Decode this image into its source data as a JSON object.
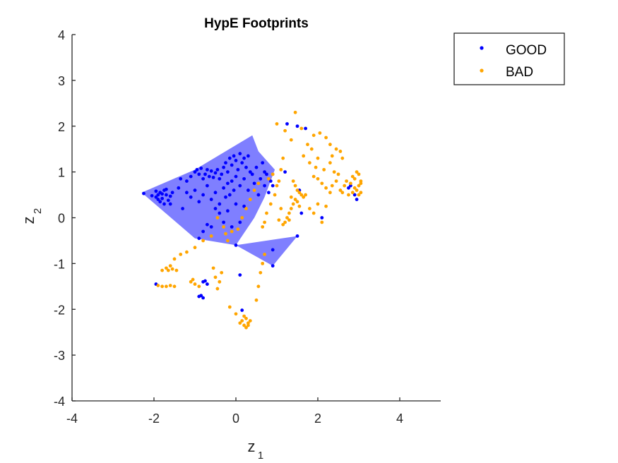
{
  "chart_data": {
    "type": "scatter",
    "title": "HypE Footprints",
    "xlabel": {
      "main": "z",
      "sub": "1"
    },
    "ylabel": {
      "main": "z",
      "sub": "2"
    },
    "xlim": [
      -4,
      5
    ],
    "ylim": [
      -4,
      4
    ],
    "xticks": [
      -4,
      -2,
      0,
      2,
      4
    ],
    "yticks": [
      -4,
      -3,
      -2,
      -1,
      0,
      1,
      2,
      3,
      4
    ],
    "xtick_labels": [
      "-4",
      "-2",
      "0",
      "2",
      "4"
    ],
    "ytick_labels": [
      "-4",
      "-3",
      "-2",
      "-1",
      "0",
      "1",
      "2",
      "3",
      "4"
    ],
    "legend": {
      "position": "top-right-outside",
      "entries": [
        {
          "name": "GOOD",
          "color": "#0000ff"
        },
        {
          "name": "BAD",
          "color": "#ffa500"
        }
      ]
    },
    "footprints": [
      {
        "series": "GOOD",
        "color": "#0000ff",
        "opacity": 0.5,
        "polygon": [
          [
            -2.3,
            0.55
          ],
          [
            -1.0,
            1.05
          ],
          [
            0.4,
            1.8
          ],
          [
            0.55,
            1.45
          ],
          [
            0.95,
            1.05
          ],
          [
            0.7,
            0.45
          ],
          [
            0.45,
            0.0
          ],
          [
            0.0,
            -0.6
          ],
          [
            -1.0,
            -0.45
          ],
          [
            -2.3,
            0.55
          ]
        ]
      },
      {
        "series": "GOOD",
        "color": "#0000ff",
        "opacity": 0.5,
        "polygon": [
          [
            0.0,
            -0.6
          ],
          [
            1.5,
            -0.4
          ],
          [
            0.9,
            -1.05
          ],
          [
            0.0,
            -0.6
          ]
        ]
      }
    ],
    "series": [
      {
        "name": "GOOD",
        "color": "#0000ff",
        "points": [
          [
            -2.25,
            0.53
          ],
          [
            -2.05,
            0.48
          ],
          [
            -1.95,
            0.45
          ],
          [
            -1.9,
            0.5
          ],
          [
            -1.85,
            0.55
          ],
          [
            -1.8,
            0.42
          ],
          [
            -1.75,
            0.6
          ],
          [
            -1.7,
            0.5
          ],
          [
            -1.65,
            0.38
          ],
          [
            -1.6,
            0.47
          ],
          [
            -1.55,
            0.55
          ],
          [
            -1.85,
            0.35
          ],
          [
            -1.75,
            0.3
          ],
          [
            -1.95,
            0.58
          ],
          [
            -1.7,
            0.62
          ],
          [
            -1.6,
            0.3
          ],
          [
            -1.9,
            0.4
          ],
          [
            -1.8,
            0.52
          ],
          [
            -1.2,
            0.8
          ],
          [
            -1.1,
            0.9
          ],
          [
            -1.0,
            1.0
          ],
          [
            -0.95,
            1.05
          ],
          [
            -0.9,
            0.95
          ],
          [
            -0.85,
            1.08
          ],
          [
            -0.8,
            0.85
          ],
          [
            -0.75,
            0.95
          ],
          [
            -0.7,
            1.05
          ],
          [
            -0.65,
            0.9
          ],
          [
            -0.6,
            1.02
          ],
          [
            -0.55,
            0.88
          ],
          [
            -0.5,
            0.98
          ],
          [
            -0.45,
            1.05
          ],
          [
            -0.4,
            0.85
          ],
          [
            -0.35,
            0.95
          ],
          [
            -0.3,
            1.1
          ],
          [
            -0.25,
            1.2
          ],
          [
            -0.2,
            1.0
          ],
          [
            -0.15,
            1.3
          ],
          [
            -0.1,
            1.15
          ],
          [
            -0.05,
            1.35
          ],
          [
            0.0,
            1.25
          ],
          [
            0.05,
            1.05
          ],
          [
            0.1,
            1.4
          ],
          [
            0.15,
            1.2
          ],
          [
            0.2,
            1.3
          ],
          [
            0.25,
            1.1
          ],
          [
            0.3,
            1.35
          ],
          [
            0.35,
            1.0
          ],
          [
            -1.2,
            0.55
          ],
          [
            -1.1,
            0.45
          ],
          [
            -1.0,
            0.6
          ],
          [
            -0.9,
            0.35
          ],
          [
            -0.8,
            0.5
          ],
          [
            -0.7,
            0.7
          ],
          [
            -0.6,
            0.4
          ],
          [
            -0.5,
            0.55
          ],
          [
            -0.4,
            0.3
          ],
          [
            -0.3,
            0.65
          ],
          [
            -0.2,
            0.75
          ],
          [
            -0.15,
            0.5
          ],
          [
            -0.1,
            0.8
          ],
          [
            -0.05,
            0.6
          ],
          [
            0.0,
            0.9
          ],
          [
            0.1,
            0.7
          ],
          [
            0.2,
            0.85
          ],
          [
            0.3,
            0.6
          ],
          [
            0.4,
            0.95
          ],
          [
            0.5,
            1.1
          ],
          [
            0.6,
            0.85
          ],
          [
            0.7,
            0.7
          ],
          [
            0.75,
            0.95
          ],
          [
            0.8,
            0.55
          ],
          [
            0.85,
            0.8
          ],
          [
            0.55,
            0.5
          ],
          [
            0.45,
            0.75
          ],
          [
            0.65,
            1.2
          ],
          [
            0.7,
            1.0
          ],
          [
            0.9,
            0.7
          ],
          [
            -0.5,
            0.2
          ],
          [
            -0.4,
            0.1
          ],
          [
            -0.3,
            -0.1
          ],
          [
            -0.2,
            0.15
          ],
          [
            -0.1,
            -0.2
          ],
          [
            0.0,
            0.3
          ],
          [
            0.1,
            -0.1
          ],
          [
            0.2,
            0.25
          ],
          [
            -0.6,
            -0.2
          ],
          [
            -0.7,
            -0.15
          ],
          [
            -0.8,
            -0.3
          ],
          [
            -0.9,
            -0.45
          ],
          [
            0.0,
            -0.6
          ],
          [
            0.9,
            -0.7
          ],
          [
            1.5,
            -0.4
          ],
          [
            0.9,
            -1.05
          ],
          [
            0.1,
            -1.25
          ],
          [
            -1.95,
            -1.45
          ],
          [
            -0.8,
            -1.4
          ],
          [
            -0.7,
            -1.45
          ],
          [
            -0.75,
            -1.38
          ],
          [
            -0.85,
            -1.7
          ],
          [
            -0.8,
            -1.75
          ],
          [
            -0.9,
            -1.72
          ],
          [
            0.15,
            -2.02
          ],
          [
            1.25,
            2.05
          ],
          [
            1.5,
            2.0
          ],
          [
            1.7,
            1.95
          ],
          [
            1.2,
            1.0
          ],
          [
            1.55,
            0.6
          ],
          [
            1.6,
            0.1
          ],
          [
            2.1,
            0.0
          ],
          [
            2.8,
            0.7
          ],
          [
            2.9,
            0.5
          ],
          [
            2.95,
            0.4
          ],
          [
            2.75,
            0.65
          ],
          [
            -1.3,
            0.2
          ],
          [
            -1.4,
            0.65
          ],
          [
            -1.35,
            0.85
          ],
          [
            -0.25,
            0.45
          ]
        ]
      },
      {
        "name": "BAD",
        "color": "#ffa500",
        "points": [
          [
            1.45,
            2.3
          ],
          [
            1.0,
            2.05
          ],
          [
            1.2,
            1.9
          ],
          [
            1.35,
            1.7
          ],
          [
            1.6,
            1.95
          ],
          [
            1.75,
            1.6
          ],
          [
            1.9,
            1.8
          ],
          [
            2.05,
            1.85
          ],
          [
            2.2,
            1.75
          ],
          [
            2.3,
            1.6
          ],
          [
            2.45,
            1.5
          ],
          [
            2.55,
            1.45
          ],
          [
            2.6,
            1.3
          ],
          [
            2.0,
            1.3
          ],
          [
            1.8,
            1.2
          ],
          [
            1.95,
            1.1
          ],
          [
            2.15,
            1.05
          ],
          [
            2.3,
            1.2
          ],
          [
            2.4,
            1.0
          ],
          [
            2.5,
            0.95
          ],
          [
            1.15,
            1.3
          ],
          [
            1.1,
            1.05
          ],
          [
            1.05,
            0.8
          ],
          [
            1.0,
            0.7
          ],
          [
            0.95,
            0.5
          ],
          [
            0.85,
            0.3
          ],
          [
            0.75,
            0.1
          ],
          [
            0.7,
            -0.1
          ],
          [
            0.65,
            -0.2
          ],
          [
            1.4,
            0.8
          ],
          [
            1.45,
            0.7
          ],
          [
            1.5,
            0.6
          ],
          [
            1.55,
            0.55
          ],
          [
            1.6,
            0.5
          ],
          [
            1.65,
            0.45
          ],
          [
            1.7,
            0.5
          ],
          [
            1.45,
            0.4
          ],
          [
            1.4,
            0.3
          ],
          [
            1.35,
            0.2
          ],
          [
            1.3,
            0.1
          ],
          [
            1.25,
            0.0
          ],
          [
            1.2,
            -0.1
          ],
          [
            1.15,
            -0.15
          ],
          [
            1.35,
            0.45
          ],
          [
            1.5,
            0.35
          ],
          [
            1.55,
            0.25
          ],
          [
            1.3,
            -0.05
          ],
          [
            1.1,
            0.2
          ],
          [
            1.05,
            -0.05
          ],
          [
            1.9,
            0.9
          ],
          [
            2.0,
            0.85
          ],
          [
            2.1,
            0.75
          ],
          [
            2.2,
            0.65
          ],
          [
            2.3,
            0.55
          ],
          [
            2.35,
            0.7
          ],
          [
            2.45,
            0.8
          ],
          [
            2.55,
            0.6
          ],
          [
            2.65,
            0.7
          ],
          [
            2.7,
            0.8
          ],
          [
            2.8,
            0.75
          ],
          [
            2.85,
            0.9
          ],
          [
            2.9,
            0.85
          ],
          [
            2.95,
            1.0
          ],
          [
            3.0,
            0.95
          ],
          [
            3.05,
            0.8
          ],
          [
            3.0,
            0.7
          ],
          [
            2.95,
            0.6
          ],
          [
            3.05,
            0.55
          ],
          [
            2.9,
            0.65
          ],
          [
            3.0,
            0.5
          ],
          [
            2.85,
            0.55
          ],
          [
            2.75,
            0.5
          ],
          [
            2.6,
            0.55
          ],
          [
            3.05,
            0.75
          ],
          [
            1.8,
            0.2
          ],
          [
            2.0,
            0.3
          ],
          [
            1.9,
            0.1
          ],
          [
            2.2,
            0.25
          ],
          [
            2.1,
            -0.1
          ],
          [
            -0.6,
            -0.4
          ],
          [
            -0.8,
            -0.5
          ],
          [
            -1.0,
            -0.65
          ],
          [
            -1.2,
            -0.75
          ],
          [
            -1.35,
            -0.8
          ],
          [
            -1.5,
            -0.9
          ],
          [
            -1.6,
            -1.05
          ],
          [
            -1.7,
            -1.1
          ],
          [
            -1.8,
            -1.15
          ],
          [
            -1.65,
            -1.15
          ],
          [
            -1.55,
            -1.12
          ],
          [
            -1.45,
            -1.15
          ],
          [
            -1.5,
            -1.5
          ],
          [
            -1.6,
            -1.48
          ],
          [
            -1.7,
            -1.5
          ],
          [
            -1.8,
            -1.5
          ],
          [
            -1.9,
            -1.48
          ],
          [
            -1.05,
            -1.35
          ],
          [
            -1.1,
            -1.4
          ],
          [
            -1.0,
            -1.45
          ],
          [
            -0.9,
            -1.5
          ],
          [
            -0.55,
            -1.1
          ],
          [
            -0.5,
            -1.3
          ],
          [
            -0.45,
            -1.55
          ],
          [
            -0.4,
            -1.4
          ],
          [
            -0.35,
            -1.2
          ],
          [
            0.25,
            -2.4
          ],
          [
            0.2,
            -2.35
          ],
          [
            0.3,
            -2.3
          ],
          [
            0.15,
            -2.25
          ],
          [
            0.25,
            -2.2
          ],
          [
            0.2,
            -2.15
          ],
          [
            0.3,
            -2.35
          ],
          [
            0.35,
            -2.25
          ],
          [
            0.1,
            -2.3
          ],
          [
            0.0,
            -2.1
          ],
          [
            -0.15,
            -1.95
          ],
          [
            0.5,
            -1.8
          ],
          [
            0.55,
            -1.5
          ],
          [
            0.6,
            -1.2
          ],
          [
            0.65,
            -1.0
          ],
          [
            0.7,
            -0.8
          ],
          [
            -0.2,
            -0.5
          ],
          [
            -0.25,
            -0.35
          ],
          [
            -0.1,
            -0.3
          ],
          [
            0.05,
            -0.25
          ],
          [
            0.15,
            0.0
          ],
          [
            0.25,
            0.2
          ],
          [
            0.35,
            0.4
          ],
          [
            0.45,
            0.6
          ],
          [
            0.55,
            0.75
          ],
          [
            1.85,
            1.5
          ],
          [
            2.35,
            1.35
          ],
          [
            1.65,
            1.35
          ],
          [
            0.8,
            0.85
          ],
          [
            0.9,
            0.95
          ],
          [
            -0.3,
            -0.2
          ],
          [
            -0.45,
            0.0
          ]
        ]
      }
    ]
  }
}
